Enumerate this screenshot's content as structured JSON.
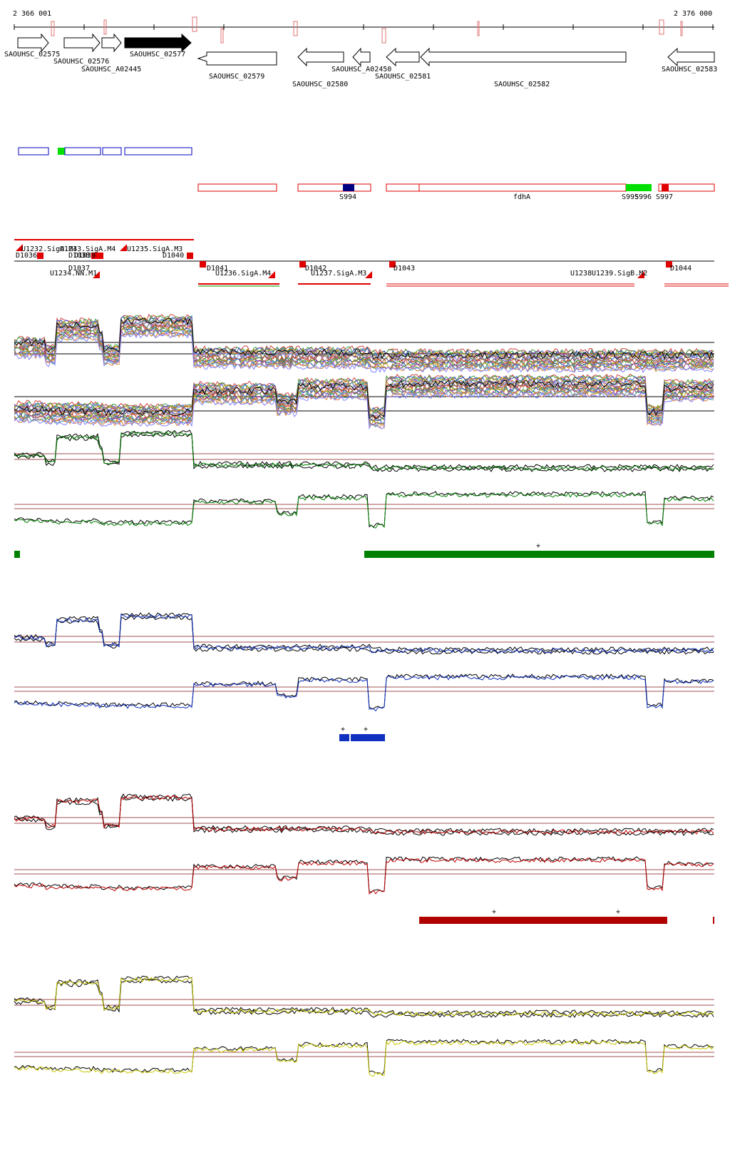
{
  "coords": {
    "start": "2 366 001",
    "end": "2 376 000"
  },
  "genes": [
    {
      "name": "SAOUHSC_02575",
      "strand": "+",
      "filled": false
    },
    {
      "name": "SAOUHSC_02576",
      "strand": "+",
      "filled": false
    },
    {
      "name": "SAOUHSC_A02445",
      "strand": "+",
      "filled": false
    },
    {
      "name": "SAOUHSC_02577",
      "strand": "+",
      "filled": true
    },
    {
      "name": "SAOUHSC_02579",
      "strand": "-",
      "filled": false
    },
    {
      "name": "SAOUHSC_02580",
      "strand": "-",
      "filled": false
    },
    {
      "name": "SAOUHSC_A02450",
      "strand": "-",
      "filled": false
    },
    {
      "name": "SAOUHSC_02581",
      "strand": "-",
      "filled": false
    },
    {
      "name": "SAOUHSC_02582",
      "strand": "-",
      "filled": false
    },
    {
      "name": "SAOUHSC_02583",
      "strand": "-",
      "filled": false
    }
  ],
  "features": [
    {
      "name": "S994"
    },
    {
      "name": "fdhA"
    },
    {
      "name": "S995"
    },
    {
      "name": "S996"
    },
    {
      "name": "S997"
    }
  ],
  "segments_upper": [
    {
      "name": "U1232.SigA.M4"
    },
    {
      "name": "U1233.SigA.M4"
    },
    {
      "name": "U1235.SigA.M3"
    },
    {
      "name": "U1234.NN.M1"
    }
  ],
  "segments_lower": [
    {
      "name": "U1236.SigA.M4"
    },
    {
      "name": "U1237.SigA.M3"
    },
    {
      "name": "U1238"
    },
    {
      "name": "U1239.SigB.M2"
    }
  ],
  "downshifts": [
    {
      "name": "D1036"
    },
    {
      "name": "D1037"
    },
    {
      "name": "D1038"
    },
    {
      "name": "D1039"
    },
    {
      "name": "D1040"
    },
    {
      "name": "D1041"
    },
    {
      "name": "D1042"
    },
    {
      "name": "D1043"
    },
    {
      "name": "D1044"
    }
  ],
  "significance_mark": "+",
  "colors": {
    "green": "#008000",
    "blue": "#1030c0",
    "red": "#b00000",
    "yellow": "#d0d000",
    "gene_outline": "#000000",
    "feature_outline": "#e00000",
    "rna_blue": "#0000c0",
    "highlight_green": "#00e000",
    "threshold": "#a05050"
  },
  "icons": [
    "forward-arrow-icon",
    "reverse-arrow-icon",
    "shift-flag-icon"
  ]
}
